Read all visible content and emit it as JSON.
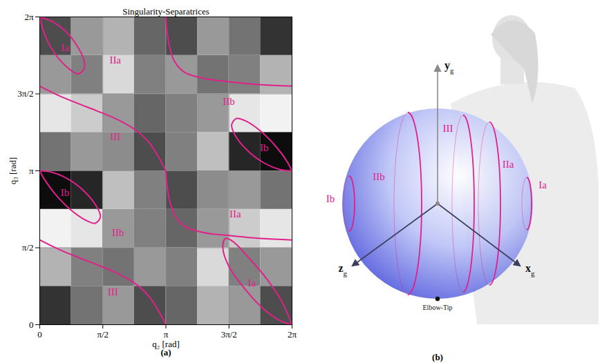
{
  "chart_data": {
    "type": "line",
    "title": "Singularity-Separatrices",
    "panel_label": "(a)",
    "x_label": "q₂ [rad]",
    "y_label": "q₃ [rad]",
    "xlim": [
      0,
      6.2832
    ],
    "ylim": [
      0,
      6.2832
    ],
    "xticks": [
      0,
      {
        "value": 1.5708,
        "label": "π/2"
      },
      {
        "value": 3.1416,
        "label": "π"
      },
      {
        "value": 4.7124,
        "label": "3π/2"
      },
      {
        "value": 6.2832,
        "label": "2π"
      }
    ],
    "yticks": [
      0,
      {
        "value": 1.5708,
        "label": "π/2"
      },
      {
        "value": 3.1416,
        "label": "π"
      },
      {
        "value": 4.7124,
        "label": "3π/2"
      },
      {
        "value": 6.2832,
        "label": "2π"
      }
    ],
    "grid": true,
    "heatmap": {
      "x_edges": [
        0,
        0.7854,
        1.5708,
        2.3562,
        3.1416,
        3.927,
        4.7124,
        5.4978,
        6.2832
      ],
      "y_edges": [
        0,
        0.7854,
        1.5708,
        2.3562,
        3.1416,
        3.927,
        4.7124,
        5.4978,
        6.2832
      ],
      "values": [
        [
          0.2,
          0.45,
          0.6,
          0.3,
          0.4,
          0.7,
          0.6,
          0.3
        ],
        [
          0.7,
          0.5,
          0.45,
          0.6,
          0.5,
          0.85,
          0.5,
          0.6
        ],
        [
          0.95,
          0.9,
          0.6,
          0.5,
          0.4,
          0.6,
          0.8,
          0.9
        ],
        [
          0.05,
          0.15,
          0.75,
          0.5,
          0.3,
          0.55,
          0.6,
          0.45
        ],
        [
          0.45,
          0.6,
          0.55,
          0.3,
          0.5,
          0.75,
          0.15,
          0.05
        ],
        [
          0.9,
          0.8,
          0.6,
          0.4,
          0.5,
          0.6,
          0.9,
          0.95
        ],
        [
          0.6,
          0.5,
          0.85,
          0.5,
          0.6,
          0.45,
          0.5,
          0.7
        ],
        [
          0.3,
          0.6,
          0.7,
          0.4,
          0.3,
          0.6,
          0.45,
          0.2
        ]
      ],
      "range": [
        0,
        1
      ]
    },
    "series": [
      {
        "color": "#e0218a",
        "x": [
          0,
          0.31,
          0.63,
          0.91,
          1.1,
          1.1,
          0.94,
          0.69,
          0.38,
          0.13,
          0
        ],
        "values": [
          6.28,
          6.19,
          6.0,
          5.72,
          5.4,
          5.22,
          5.12,
          5.25,
          5.53,
          5.91,
          6.28
        ]
      },
      {
        "color": "#e0218a",
        "x": [
          6.28,
          5.97,
          5.59,
          5.15,
          4.71,
          4.56,
          4.62,
          4.81,
          5.22,
          5.65,
          6.03,
          6.28
        ],
        "values": [
          0,
          0.09,
          0.31,
          0.69,
          1.19,
          1.57,
          1.76,
          1.7,
          1.35,
          0.94,
          0.47,
          0
        ]
      },
      {
        "color": "#e0218a",
        "x": [
          0,
          0.31,
          0.69,
          1.1,
          1.41,
          1.51,
          1.38,
          1.13,
          0.75,
          0.38,
          0.13,
          0
        ],
        "values": [
          3.14,
          3.11,
          2.98,
          2.73,
          2.42,
          2.2,
          2.07,
          2.14,
          2.36,
          2.67,
          2.95,
          3.14
        ]
      },
      {
        "color": "#e0218a",
        "x": [
          6.28,
          5.97,
          5.59,
          5.18,
          4.87,
          4.78,
          4.9,
          5.15,
          5.53,
          5.91,
          6.16,
          6.28
        ],
        "values": [
          3.14,
          3.17,
          3.3,
          3.55,
          3.86,
          4.08,
          4.21,
          4.15,
          3.93,
          3.61,
          3.33,
          3.14
        ]
      },
      {
        "color": "#e0218a",
        "x": [
          0,
          0.47,
          0.94,
          1.41,
          1.88,
          2.36,
          2.73,
          2.98,
          3.14
        ],
        "values": [
          4.87,
          4.68,
          4.52,
          4.37,
          4.21,
          3.99,
          3.71,
          3.39,
          3.14
        ]
      },
      {
        "color": "#e0218a",
        "x": [
          3.14,
          3.17,
          3.24,
          3.36,
          3.61,
          4.08,
          4.71,
          5.5,
          6.28
        ],
        "values": [
          6.28,
          5.97,
          5.65,
          5.37,
          5.15,
          5.03,
          4.96,
          4.9,
          4.87
        ]
      },
      {
        "color": "#e0218a",
        "x": [
          0,
          0.47,
          0.94,
          1.41,
          1.88,
          2.36,
          2.73,
          2.98,
          3.14
        ],
        "values": [
          1.73,
          1.54,
          1.38,
          1.23,
          1.07,
          0.85,
          0.57,
          0.25,
          0
        ]
      },
      {
        "color": "#e0218a",
        "x": [
          3.14,
          3.17,
          3.24,
          3.36,
          3.61,
          4.08,
          4.71,
          5.5,
          6.28
        ],
        "values": [
          3.14,
          2.83,
          2.51,
          2.23,
          2.01,
          1.88,
          1.82,
          1.76,
          1.73
        ]
      }
    ],
    "annotations": [
      {
        "text": "Ia",
        "x": 0.63,
        "y": 5.65
      },
      {
        "text": "IIa",
        "x": 1.88,
        "y": 5.4
      },
      {
        "text": "III",
        "x": 1.88,
        "y": 3.83
      },
      {
        "text": "IIb",
        "x": 4.71,
        "y": 4.56
      },
      {
        "text": "Ib",
        "x": 5.59,
        "y": 3.61
      },
      {
        "text": "Ib",
        "x": 0.63,
        "y": 2.7
      },
      {
        "text": "IIb",
        "x": 1.95,
        "y": 1.88
      },
      {
        "text": "III",
        "x": 1.82,
        "y": 0.66
      },
      {
        "text": "IIa",
        "x": 4.87,
        "y": 2.26
      },
      {
        "text": "Ia",
        "x": 5.28,
        "y": 0.85
      }
    ]
  },
  "diagram": {
    "panel_label": "(b)",
    "axes": [
      {
        "label": "y",
        "subscript": "g"
      },
      {
        "label": "z",
        "subscript": "g"
      },
      {
        "label": "x",
        "subscript": "g"
      }
    ],
    "regions": [
      "III",
      "IIb",
      "IIa",
      "Ia",
      "Ib"
    ],
    "point": "Elbow-Tip"
  }
}
